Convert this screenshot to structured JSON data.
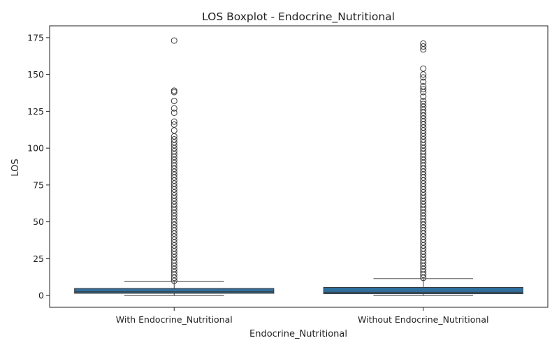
{
  "chart_data": {
    "type": "boxplot",
    "title": "LOS Boxplot - Endocrine_Nutritional",
    "xlabel": "Endocrine_Nutritional",
    "ylabel": "LOS",
    "ylim": [
      -8,
      183
    ],
    "yticks": [
      0,
      25,
      50,
      75,
      100,
      125,
      150,
      175
    ],
    "grid": false,
    "legend": "none",
    "colors": {
      "box": "#2f6f9e",
      "line": "#3a3a3a",
      "outlier": "#3a3a3a"
    },
    "categories": [
      "With Endocrine_Nutritional",
      "Without Endocrine_Nutritional"
    ],
    "boxes": [
      {
        "category": "With Endocrine_Nutritional",
        "whisker_low": 0,
        "q1": 1.5,
        "median": 2.5,
        "q3": 4.8,
        "whisker_high": 9.5,
        "outliers": [
          173,
          139,
          138,
          132,
          127,
          124,
          118,
          116,
          112,
          108,
          106,
          104,
          102,
          100,
          98,
          96,
          94,
          92,
          90,
          88,
          86,
          84,
          82,
          80,
          78,
          76,
          74,
          72,
          70,
          68,
          66,
          64,
          62,
          60,
          58,
          56,
          54,
          52,
          50,
          48,
          46,
          44,
          42,
          40,
          38,
          36,
          34,
          32,
          30,
          28,
          26,
          24,
          22,
          20,
          18,
          16,
          14,
          12,
          10
        ]
      },
      {
        "category": "Without Endocrine_Nutritional",
        "whisker_low": 0,
        "q1": 1.2,
        "median": 2.2,
        "q3": 5.5,
        "whisker_high": 11.5,
        "outliers": [
          171,
          169,
          167,
          154,
          150,
          148,
          145,
          142,
          140,
          138,
          135,
          132,
          130,
          128,
          126,
          124,
          122,
          120,
          118,
          116,
          114,
          112,
          110,
          108,
          106,
          104,
          102,
          100,
          98,
          96,
          94,
          92,
          90,
          88,
          86,
          84,
          82,
          80,
          78,
          76,
          74,
          72,
          70,
          68,
          66,
          64,
          62,
          60,
          58,
          56,
          54,
          52,
          50,
          48,
          46,
          44,
          42,
          40,
          38,
          36,
          34,
          32,
          30,
          28,
          26,
          24,
          22,
          20,
          18,
          16,
          14,
          12
        ]
      }
    ]
  }
}
